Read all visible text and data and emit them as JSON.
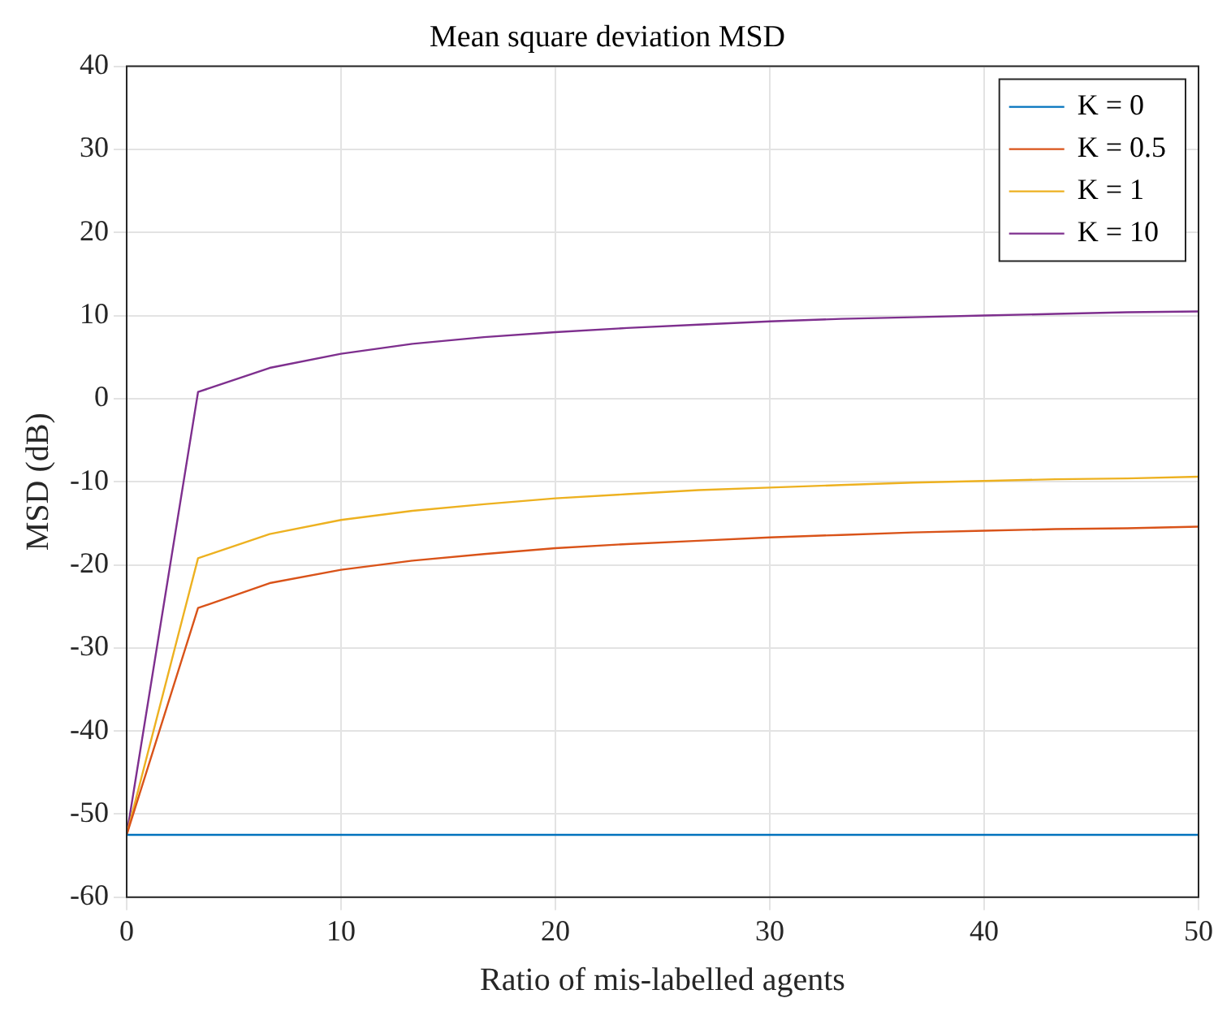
{
  "chart_data": {
    "type": "line",
    "title": "Mean square deviation MSD",
    "xlabel": "Ratio of mis-labelled agents",
    "ylabel": "MSD (dB)",
    "x": [
      0,
      3.33,
      6.67,
      10,
      13.33,
      16.67,
      20,
      23.33,
      26.67,
      30,
      33.33,
      36.67,
      40,
      43.33,
      46.67,
      50
    ],
    "series": [
      {
        "name": "K = 0",
        "color": "#0072bd",
        "values": [
          -52.5,
          -52.5,
          -52.5,
          -52.5,
          -52.5,
          -52.5,
          -52.5,
          -52.5,
          -52.5,
          -52.5,
          -52.5,
          -52.5,
          -52.5,
          -52.5,
          -52.5,
          -52.5
        ]
      },
      {
        "name": "K = 0.5",
        "color": "#d95319",
        "values": [
          -52.5,
          -25.2,
          -22.2,
          -20.6,
          -19.5,
          -18.7,
          -18,
          -17.5,
          -17.1,
          -16.7,
          -16.4,
          -16.1,
          -15.9,
          -15.7,
          -15.6,
          -15.4
        ]
      },
      {
        "name": "K = 1",
        "color": "#edb120",
        "values": [
          -52.5,
          -19.2,
          -16.3,
          -14.6,
          -13.5,
          -12.7,
          -12,
          -11.5,
          -11,
          -10.7,
          -10.4,
          -10.1,
          -9.9,
          -9.7,
          -9.6,
          -9.4
        ]
      },
      {
        "name": "K = 10",
        "color": "#7e2f8e",
        "values": [
          -52.5,
          0.8,
          3.7,
          5.4,
          6.6,
          7.4,
          8,
          8.5,
          8.9,
          9.3,
          9.6,
          9.8,
          10,
          10.2,
          10.4,
          10.5
        ]
      }
    ],
    "xlim": [
      0,
      50
    ],
    "xticks": [
      0,
      10,
      20,
      30,
      40,
      50
    ],
    "ylim": [
      -60,
      40
    ],
    "yticks": [
      -60,
      -50,
      -40,
      -30,
      -20,
      -10,
      0,
      10,
      20,
      30,
      40
    ],
    "grid": true,
    "legend": "top right",
    "marker": "none",
    "line_style": "solid"
  }
}
